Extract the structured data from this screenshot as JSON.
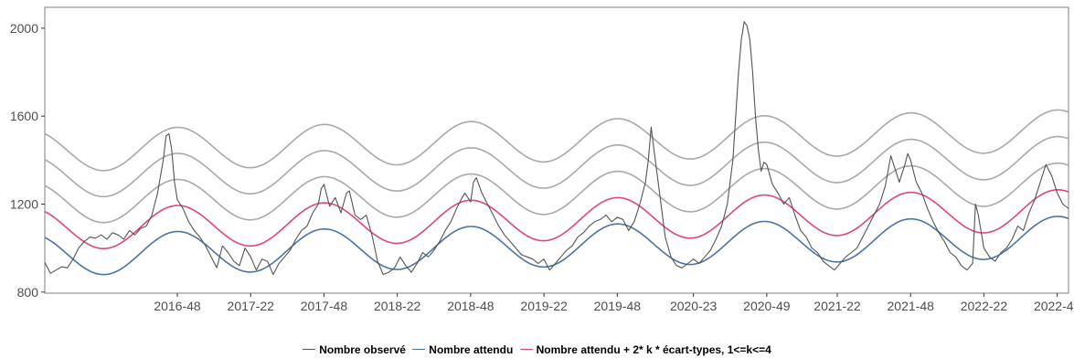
{
  "chart_data": {
    "type": "line",
    "title": "",
    "xlabel": "",
    "ylabel": "",
    "ylim": [
      795,
      2095
    ],
    "yticks": [
      800,
      1200,
      1600,
      2000
    ],
    "x_range": [
      "2016-01",
      "2022-52"
    ],
    "xticks": [
      "2016-48",
      "2017-22",
      "2017-48",
      "2018-22",
      "2018-48",
      "2019-22",
      "2019-48",
      "2020-23",
      "2020-49",
      "2021-22",
      "2021-48",
      "2022-22",
      "2022-48"
    ],
    "grid": false,
    "legend_position": "bottom",
    "colors": {
      "observed": "#555555",
      "expected": "#4a74a6",
      "threshold_k1": "#e0457b",
      "threshold_other": "#a9a9a9"
    },
    "series": [
      {
        "name": "Nombre observé",
        "color": "#555555",
        "points": [
          [
            "2016-01",
            935
          ],
          [
            "2016-03",
            885
          ],
          [
            "2016-05",
            900
          ],
          [
            "2016-07",
            915
          ],
          [
            "2016-09",
            910
          ],
          [
            "2016-11",
            950
          ],
          [
            "2016-13",
            1000
          ],
          [
            "2016-15",
            1030
          ],
          [
            "2016-17",
            1050
          ],
          [
            "2016-19",
            1045
          ],
          [
            "2016-21",
            1060
          ],
          [
            "2016-23",
            1040
          ],
          [
            "2016-25",
            1070
          ],
          [
            "2016-27",
            1060
          ],
          [
            "2016-29",
            1040
          ],
          [
            "2016-31",
            1080
          ],
          [
            "2016-33",
            1060
          ],
          [
            "2016-35",
            1090
          ],
          [
            "2016-37",
            1100
          ],
          [
            "2016-39",
            1150
          ],
          [
            "2016-41",
            1250
          ],
          [
            "2016-43",
            1400
          ],
          [
            "2016-44",
            1510
          ],
          [
            "2016-45",
            1520
          ],
          [
            "2016-46",
            1450
          ],
          [
            "2016-47",
            1300
          ],
          [
            "2016-48",
            1220
          ],
          [
            "2016-50",
            1180
          ],
          [
            "2016-52",
            1120
          ],
          [
            "2017-02",
            1080
          ],
          [
            "2017-04",
            1050
          ],
          [
            "2017-06",
            1010
          ],
          [
            "2017-08",
            960
          ],
          [
            "2017-10",
            910
          ],
          [
            "2017-12",
            1010
          ],
          [
            "2017-14",
            980
          ],
          [
            "2017-16",
            940
          ],
          [
            "2017-18",
            920
          ],
          [
            "2017-20",
            1000
          ],
          [
            "2017-22",
            960
          ],
          [
            "2017-24",
            900
          ],
          [
            "2017-26",
            950
          ],
          [
            "2017-28",
            940
          ],
          [
            "2017-30",
            880
          ],
          [
            "2017-32",
            930
          ],
          [
            "2017-34",
            960
          ],
          [
            "2017-36",
            990
          ],
          [
            "2017-38",
            1040
          ],
          [
            "2017-40",
            1080
          ],
          [
            "2017-42",
            1100
          ],
          [
            "2017-44",
            1160
          ],
          [
            "2017-46",
            1200
          ],
          [
            "2017-47",
            1270
          ],
          [
            "2017-48",
            1290
          ],
          [
            "2017-49",
            1240
          ],
          [
            "2017-50",
            1190
          ],
          [
            "2017-52",
            1230
          ],
          [
            "2018-02",
            1160
          ],
          [
            "2018-04",
            1250
          ],
          [
            "2018-05",
            1260
          ],
          [
            "2018-07",
            1150
          ],
          [
            "2018-09",
            1130
          ],
          [
            "2018-11",
            1150
          ],
          [
            "2018-13",
            1060
          ],
          [
            "2018-15",
            940
          ],
          [
            "2018-17",
            880
          ],
          [
            "2018-19",
            890
          ],
          [
            "2018-21",
            910
          ],
          [
            "2018-23",
            960
          ],
          [
            "2018-25",
            920
          ],
          [
            "2018-27",
            890
          ],
          [
            "2018-29",
            930
          ],
          [
            "2018-31",
            980
          ],
          [
            "2018-33",
            960
          ],
          [
            "2018-35",
            990
          ],
          [
            "2018-37",
            1030
          ],
          [
            "2018-39",
            1080
          ],
          [
            "2018-41",
            1120
          ],
          [
            "2018-43",
            1180
          ],
          [
            "2018-45",
            1230
          ],
          [
            "2018-46",
            1250
          ],
          [
            "2018-48",
            1210
          ],
          [
            "2018-49",
            1300
          ],
          [
            "2018-50",
            1320
          ],
          [
            "2018-52",
            1250
          ],
          [
            "2019-02",
            1200
          ],
          [
            "2019-04",
            1150
          ],
          [
            "2019-06",
            1100
          ],
          [
            "2019-08",
            1060
          ],
          [
            "2019-10",
            1030
          ],
          [
            "2019-12",
            1000
          ],
          [
            "2019-14",
            970
          ],
          [
            "2019-16",
            960
          ],
          [
            "2019-18",
            950
          ],
          [
            "2019-20",
            930
          ],
          [
            "2019-22",
            950
          ],
          [
            "2019-24",
            900
          ],
          [
            "2019-26",
            930
          ],
          [
            "2019-28",
            960
          ],
          [
            "2019-30",
            990
          ],
          [
            "2019-32",
            1010
          ],
          [
            "2019-34",
            1050
          ],
          [
            "2019-36",
            1070
          ],
          [
            "2019-38",
            1100
          ],
          [
            "2019-40",
            1120
          ],
          [
            "2019-42",
            1130
          ],
          [
            "2019-44",
            1150
          ],
          [
            "2019-46",
            1120
          ],
          [
            "2019-48",
            1140
          ],
          [
            "2019-50",
            1130
          ],
          [
            "2019-52",
            1080
          ],
          [
            "2020-02",
            1120
          ],
          [
            "2020-04",
            1200
          ],
          [
            "2020-06",
            1300
          ],
          [
            "2020-07",
            1400
          ],
          [
            "2020-08",
            1550
          ],
          [
            "2020-09",
            1450
          ],
          [
            "2020-11",
            1250
          ],
          [
            "2020-13",
            1050
          ],
          [
            "2020-15",
            960
          ],
          [
            "2020-17",
            920
          ],
          [
            "2020-19",
            910
          ],
          [
            "2020-21",
            930
          ],
          [
            "2020-23",
            950
          ],
          [
            "2020-25",
            930
          ],
          [
            "2020-27",
            960
          ],
          [
            "2020-29",
            990
          ],
          [
            "2020-31",
            1040
          ],
          [
            "2020-33",
            1100
          ],
          [
            "2020-35",
            1200
          ],
          [
            "2020-37",
            1400
          ],
          [
            "2020-38",
            1600
          ],
          [
            "2020-39",
            1800
          ],
          [
            "2020-40",
            1950
          ],
          [
            "2020-41",
            2030
          ],
          [
            "2020-42",
            2010
          ],
          [
            "2020-43",
            1950
          ],
          [
            "2020-44",
            1800
          ],
          [
            "2020-45",
            1600
          ],
          [
            "2020-46",
            1450
          ],
          [
            "2020-47",
            1350
          ],
          [
            "2020-48",
            1390
          ],
          [
            "2020-49",
            1380
          ],
          [
            "2020-51",
            1290
          ],
          [
            "2021-01",
            1250
          ],
          [
            "2021-03",
            1200
          ],
          [
            "2021-05",
            1230
          ],
          [
            "2021-07",
            1150
          ],
          [
            "2021-09",
            1080
          ],
          [
            "2021-11",
            1050
          ],
          [
            "2021-13",
            1000
          ],
          [
            "2021-15",
            980
          ],
          [
            "2021-17",
            940
          ],
          [
            "2021-19",
            920
          ],
          [
            "2021-21",
            900
          ],
          [
            "2021-23",
            930
          ],
          [
            "2021-25",
            960
          ],
          [
            "2021-27",
            980
          ],
          [
            "2021-29",
            1000
          ],
          [
            "2021-31",
            1050
          ],
          [
            "2021-33",
            1100
          ],
          [
            "2021-35",
            1150
          ],
          [
            "2021-37",
            1200
          ],
          [
            "2021-39",
            1280
          ],
          [
            "2021-40",
            1350
          ],
          [
            "2021-41",
            1420
          ],
          [
            "2021-42",
            1380
          ],
          [
            "2021-44",
            1300
          ],
          [
            "2021-46",
            1380
          ],
          [
            "2021-47",
            1430
          ],
          [
            "2021-48",
            1400
          ],
          [
            "2021-50",
            1300
          ],
          [
            "2021-52",
            1250
          ],
          [
            "2022-02",
            1180
          ],
          [
            "2022-04",
            1120
          ],
          [
            "2022-06",
            1070
          ],
          [
            "2022-08",
            1030
          ],
          [
            "2022-10",
            980
          ],
          [
            "2022-12",
            960
          ],
          [
            "2022-14",
            920
          ],
          [
            "2022-16",
            900
          ],
          [
            "2022-18",
            930
          ],
          [
            "2022-19",
            1200
          ],
          [
            "2022-20",
            1150
          ],
          [
            "2022-22",
            1000
          ],
          [
            "2022-24",
            960
          ],
          [
            "2022-26",
            940
          ],
          [
            "2022-28",
            980
          ],
          [
            "2022-30",
            1000
          ],
          [
            "2022-32",
            1040
          ],
          [
            "2022-34",
            1100
          ],
          [
            "2022-36",
            1080
          ],
          [
            "2022-38",
            1160
          ],
          [
            "2022-40",
            1220
          ],
          [
            "2022-42",
            1300
          ],
          [
            "2022-44",
            1380
          ],
          [
            "2022-46",
            1330
          ],
          [
            "2022-48",
            1250
          ],
          [
            "2022-50",
            1200
          ],
          [
            "2022-52",
            1180
          ]
        ]
      },
      {
        "name": "Nombre attendu",
        "color": "#4a74a6",
        "model": "sinusoid",
        "mean": [
          970,
          1050
        ],
        "amplitude": 95,
        "peak_week": 48
      },
      {
        "name": "Nombre attendu + 2* k * écart-types, 1<=k<=4",
        "color": "#e0457b",
        "color_extra": "#a9a9a9",
        "k": [
          1,
          2,
          3,
          4
        ],
        "two_sd": [
          118,
          121
        ]
      }
    ]
  }
}
